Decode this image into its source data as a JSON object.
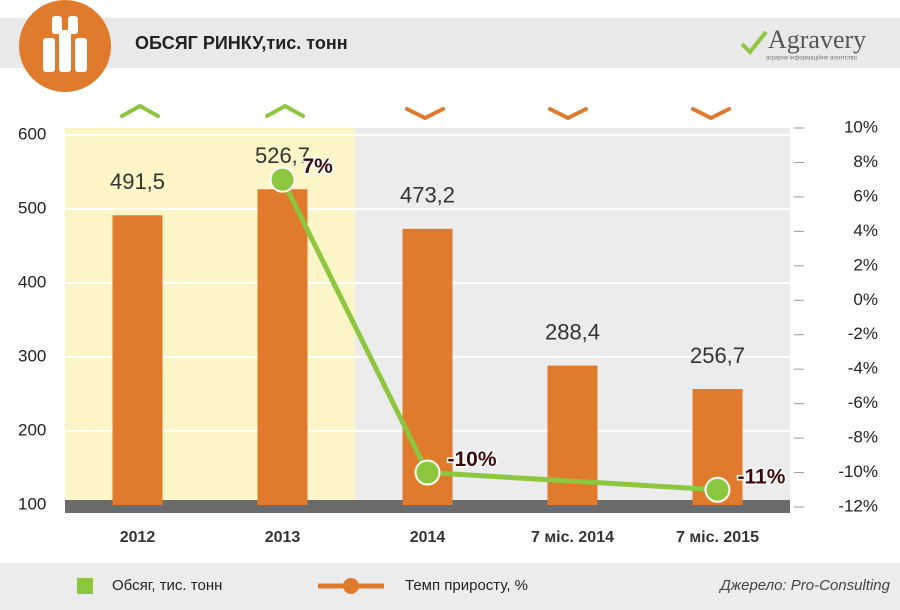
{
  "chart_data": {
    "type": "bar-line",
    "title": "ОБСЯГ РИНКУ,тис. тонн",
    "logo": "Agravery",
    "logo_subtitle": "аграрне інформаційне агентство",
    "source": "Джерело: Pro-Consulting",
    "categories": [
      "2012",
      "2013",
      "2014",
      "7 міс. 2014",
      "7 міс. 2015"
    ],
    "series": [
      {
        "name": "Обсяг, тис. тонн",
        "type": "bar",
        "color": "#e07a2c",
        "values": [
          491.5,
          526.7,
          473.2,
          288.4,
          256.7
        ],
        "value_labels": [
          "491,5",
          "526,7",
          "473,2",
          "288,4",
          "256,7"
        ]
      },
      {
        "name": "Темп приросту, %",
        "type": "line",
        "axis": "y2",
        "color": "#8dc63f",
        "values": [
          null,
          7,
          -10,
          null,
          -11
        ],
        "value_labels": [
          null,
          "7%",
          "-10%",
          null,
          "-11%"
        ]
      }
    ],
    "legend_colors": [
      "#8dc63f",
      "#e07a2c"
    ],
    "ylim": [
      100,
      600
    ],
    "yticks": [
      100,
      200,
      300,
      400,
      500,
      600
    ],
    "y2lim": [
      -12,
      10
    ],
    "y2ticks": [
      {
        "value": -12,
        "label": "-12%"
      },
      {
        "value": -10,
        "label": "-10%"
      },
      {
        "value": -8,
        "label": "-8%"
      },
      {
        "value": -6,
        "label": "-6%"
      },
      {
        "value": -4,
        "label": "-4%"
      },
      {
        "value": -2,
        "label": "-2%"
      },
      {
        "value": 0,
        "label": "0%"
      },
      {
        "value": 2,
        "label": "2%"
      },
      {
        "value": 4,
        "label": "4%"
      },
      {
        "value": 6,
        "label": "6%"
      },
      {
        "value": 8,
        "label": "8%"
      },
      {
        "value": 10,
        "label": "10%"
      }
    ],
    "grid": true
  }
}
